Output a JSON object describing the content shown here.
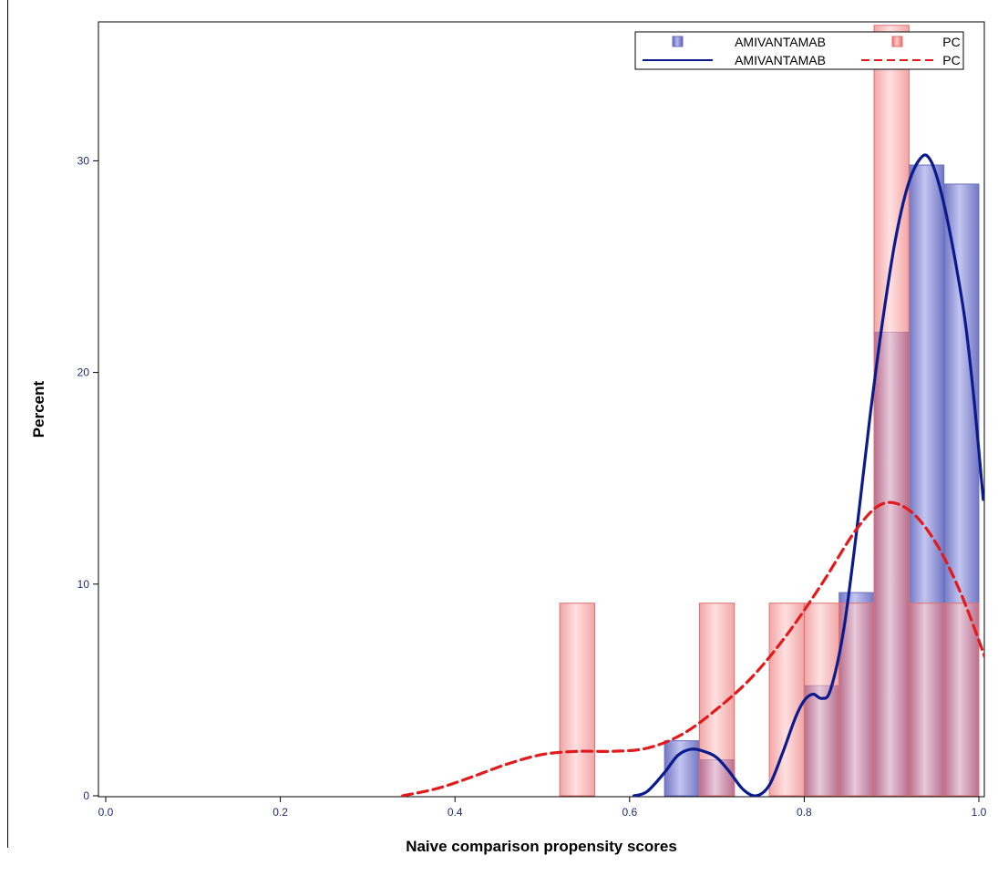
{
  "chart_data": {
    "type": "bar",
    "xlabel": "Naive comparison propensity scores",
    "ylabel": "Percent",
    "xlim": [
      0.0,
      1.0
    ],
    "ylim": [
      0,
      36
    ],
    "x_ticks": [
      0.0,
      0.2,
      0.4,
      0.6,
      0.8,
      1.0
    ],
    "x_tick_labels": [
      "0.0",
      "0.2",
      "0.4",
      "0.6",
      "0.8",
      "1.0"
    ],
    "y_ticks": [
      0,
      10,
      20,
      30
    ],
    "y_tick_labels": [
      "0",
      "10",
      "20",
      "30"
    ],
    "bin_width": 0.04,
    "legend_position": "top-right",
    "histograms": [
      {
        "name": "AMIVANTAMAB",
        "color": "#7b7fd0",
        "bins": [
          {
            "start": 0.64,
            "value": 2.6
          },
          {
            "start": 0.68,
            "value": 1.7
          },
          {
            "start": 0.8,
            "value": 5.2
          },
          {
            "start": 0.84,
            "value": 9.6
          },
          {
            "start": 0.88,
            "value": 21.9
          },
          {
            "start": 0.92,
            "value": 29.8
          },
          {
            "start": 0.96,
            "value": 28.9
          }
        ]
      },
      {
        "name": "PC",
        "color": "#f08080",
        "bins": [
          {
            "start": 0.52,
            "value": 9.1
          },
          {
            "start": 0.68,
            "value": 9.1
          },
          {
            "start": 0.76,
            "value": 9.1
          },
          {
            "start": 0.8,
            "value": 9.1
          },
          {
            "start": 0.84,
            "value": 9.1
          },
          {
            "start": 0.88,
            "value": 36.4
          },
          {
            "start": 0.92,
            "value": 9.1
          },
          {
            "start": 0.96,
            "value": 9.1
          }
        ]
      }
    ],
    "density_curves": [
      {
        "name": "AMIVANTAMAB",
        "color": "#0b1a8c",
        "style": "solid",
        "points": [
          [
            0.605,
            0.0
          ],
          [
            0.62,
            0.2
          ],
          [
            0.64,
            1.1
          ],
          [
            0.655,
            1.9
          ],
          [
            0.67,
            2.2
          ],
          [
            0.685,
            2.1
          ],
          [
            0.7,
            1.8
          ],
          [
            0.715,
            1.1
          ],
          [
            0.73,
            0.3
          ],
          [
            0.745,
            0.0
          ],
          [
            0.76,
            0.5
          ],
          [
            0.775,
            2.0
          ],
          [
            0.79,
            3.7
          ],
          [
            0.8,
            4.5
          ],
          [
            0.81,
            4.8
          ],
          [
            0.82,
            4.6
          ],
          [
            0.83,
            5.0
          ],
          [
            0.845,
            7.8
          ],
          [
            0.86,
            12.5
          ],
          [
            0.875,
            17.8
          ],
          [
            0.89,
            22.5
          ],
          [
            0.905,
            26.4
          ],
          [
            0.92,
            29.0
          ],
          [
            0.935,
            30.2
          ],
          [
            0.945,
            30.0
          ],
          [
            0.955,
            28.8
          ],
          [
            0.965,
            27.0
          ],
          [
            0.975,
            24.8
          ],
          [
            0.985,
            22.2
          ],
          [
            0.995,
            18.5
          ],
          [
            1.005,
            14.0
          ]
        ]
      },
      {
        "name": "PC",
        "color": "#e31a1c",
        "style": "dashed",
        "points": [
          [
            0.34,
            0.0
          ],
          [
            0.38,
            0.35
          ],
          [
            0.42,
            0.9
          ],
          [
            0.46,
            1.5
          ],
          [
            0.5,
            1.95
          ],
          [
            0.54,
            2.1
          ],
          [
            0.58,
            2.1
          ],
          [
            0.62,
            2.25
          ],
          [
            0.66,
            2.9
          ],
          [
            0.7,
            4.1
          ],
          [
            0.74,
            5.6
          ],
          [
            0.78,
            7.6
          ],
          [
            0.82,
            10.0
          ],
          [
            0.86,
            12.6
          ],
          [
            0.89,
            13.8
          ],
          [
            0.92,
            13.5
          ],
          [
            0.95,
            12.0
          ],
          [
            0.98,
            9.5
          ],
          [
            1.01,
            6.2
          ]
        ]
      }
    ],
    "legend_entries": [
      {
        "label": "AMIVANTAMAB",
        "marker": "square",
        "color": "#7b7fd0"
      },
      {
        "label": "PC",
        "marker": "square",
        "color": "#f08080"
      },
      {
        "label": "AMIVANTAMAB",
        "marker": "line-solid",
        "color": "#0b1a8c"
      },
      {
        "label": "PC",
        "marker": "line-dashed",
        "color": "#e31a1c"
      }
    ]
  }
}
